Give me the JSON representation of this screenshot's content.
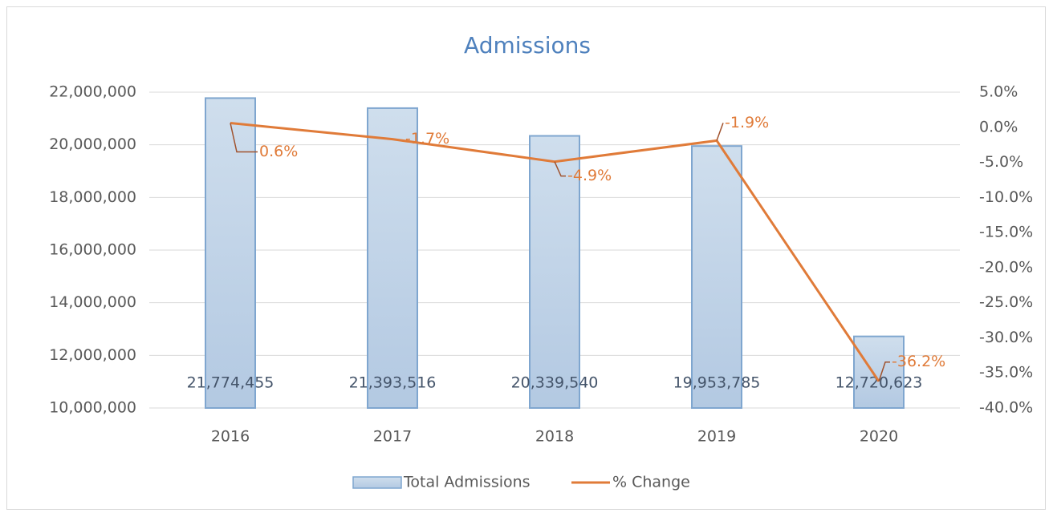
{
  "chart_data": {
    "type": "combo",
    "title": "Admissions",
    "categories": [
      "2016",
      "2017",
      "2018",
      "2019",
      "2020"
    ],
    "series": [
      {
        "name": "Total Admissions",
        "type": "bar",
        "color": "#c3d5e8",
        "values": [
          21774455,
          21393516,
          20339540,
          19953785,
          12720623
        ],
        "value_labels": [
          "21,774,455",
          "21,393,516",
          "20,339,540",
          "19,953,785",
          "12,720,623"
        ]
      },
      {
        "name": "% Change",
        "type": "line",
        "axis": "y2",
        "color": "#e07b39",
        "values": [
          0.6,
          -1.7,
          -4.9,
          -1.9,
          -36.2
        ],
        "value_labels": [
          "0.6%",
          "-1.7%",
          "-4.9%",
          "-1.9%",
          "-36.2%"
        ]
      }
    ],
    "ylim": [
      10000000,
      22000000
    ],
    "yticks": [
      {
        "value": 10000000,
        "label": "10,000,000"
      },
      {
        "value": 12000000,
        "label": "12,000,000"
      },
      {
        "value": 14000000,
        "label": "14,000,000"
      },
      {
        "value": 16000000,
        "label": "16,000,000"
      },
      {
        "value": 18000000,
        "label": "18,000,000"
      },
      {
        "value": 20000000,
        "label": "20,000,000"
      },
      {
        "value": 22000000,
        "label": "22,000,000"
      }
    ],
    "y2lim": [
      -40,
      5
    ],
    "y2ticks": [
      {
        "value": -40,
        "label": "-40.0%"
      },
      {
        "value": -35,
        "label": "-35.0%"
      },
      {
        "value": -30,
        "label": "-30.0%"
      },
      {
        "value": -25,
        "label": "-25.0%"
      },
      {
        "value": -20,
        "label": "-20.0%"
      },
      {
        "value": -15,
        "label": "-15.0%"
      },
      {
        "value": -10,
        "label": "-10.0%"
      },
      {
        "value": -5,
        "label": "-5.0%"
      },
      {
        "value": 0,
        "label": "0.0%"
      },
      {
        "value": 5,
        "label": "5.0%"
      }
    ],
    "grid": true,
    "legend": "bottom"
  }
}
